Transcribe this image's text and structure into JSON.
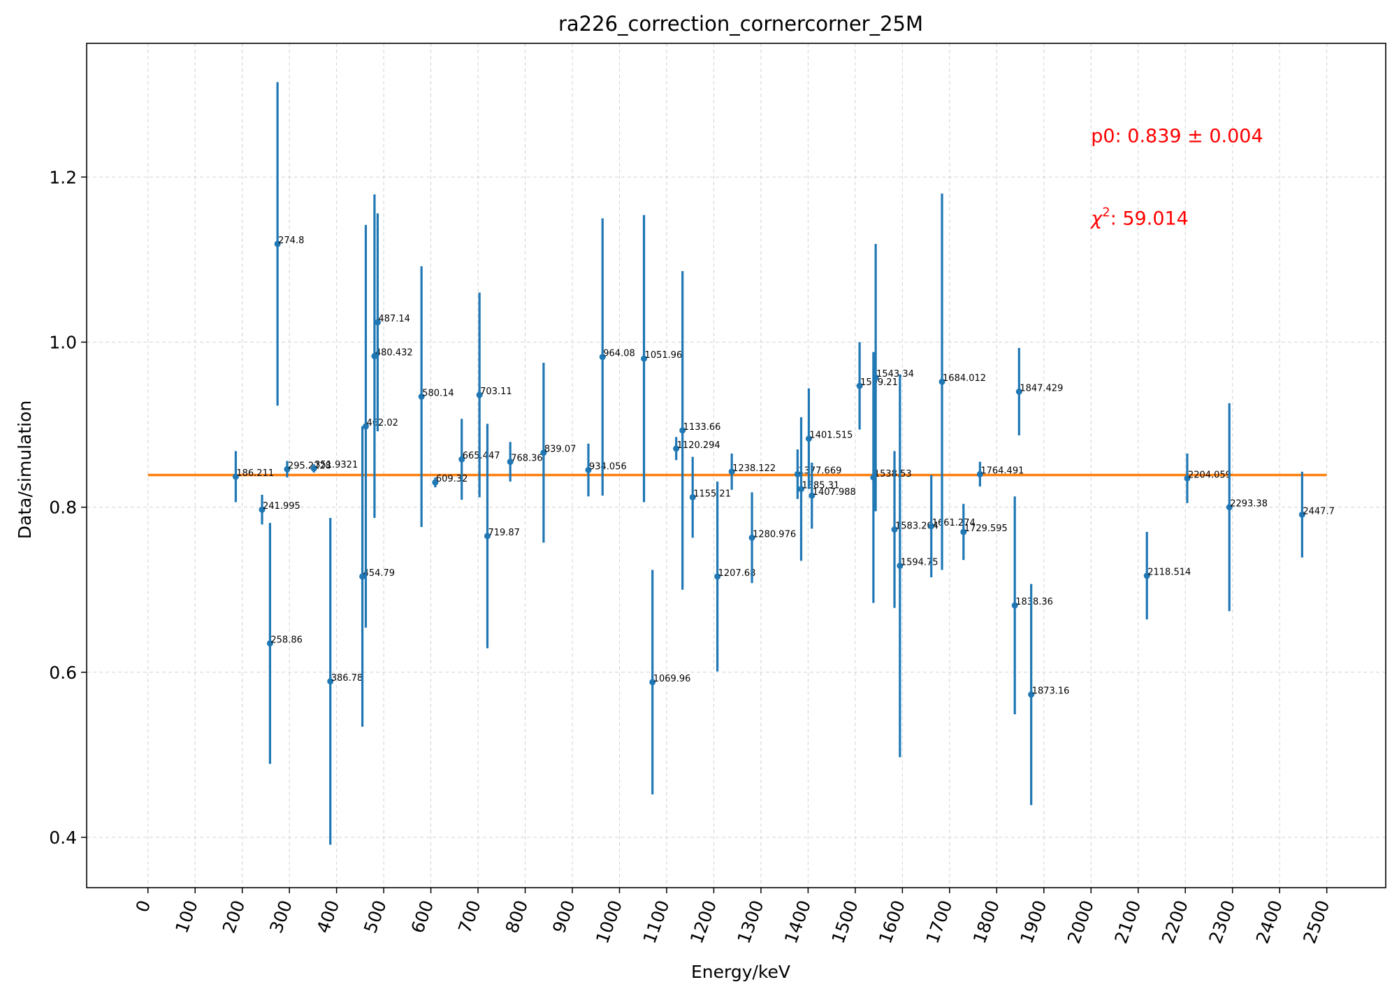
{
  "chart_data": {
    "type": "scatter",
    "title": "ra226_correction_cornercorner_25M",
    "xlabel": "Energy/keV",
    "ylabel": "Data/simulation",
    "xlim": [
      -130,
      2625
    ],
    "ylim": [
      0.339,
      1.362
    ],
    "x_ticks": [
      0,
      100,
      200,
      300,
      400,
      500,
      600,
      700,
      800,
      900,
      1000,
      1100,
      1200,
      1300,
      1400,
      1500,
      1600,
      1700,
      1800,
      1900,
      2000,
      2100,
      2200,
      2300,
      2400,
      2500
    ],
    "y_ticks": [
      0.4,
      0.6,
      0.8,
      1.0,
      1.2
    ],
    "y_tick_labels": [
      "0.4",
      "0.6",
      "0.8",
      "1.0",
      "1.2"
    ],
    "grid": true,
    "series": [
      {
        "type": "errorbar",
        "color": "#1f77b4",
        "points": [
          {
            "label": "186.211",
            "x": 186.211,
            "y": 0.837,
            "err": 0.031
          },
          {
            "label": "241.995",
            "x": 241.995,
            "y": 0.797,
            "err": 0.018
          },
          {
            "label": "258.86",
            "x": 258.86,
            "y": 0.635,
            "err": 0.146
          },
          {
            "label": "274.8",
            "x": 274.8,
            "y": 1.119,
            "err": 0.196
          },
          {
            "label": "295.2228",
            "x": 295.2228,
            "y": 0.846,
            "err": 0.01
          },
          {
            "label": "351.9321",
            "x": 351.9321,
            "y": 0.847,
            "err": 0.005
          },
          {
            "label": "386.78",
            "x": 386.78,
            "y": 0.589,
            "err": 0.198
          },
          {
            "label": "454.79",
            "x": 454.79,
            "y": 0.716,
            "err": 0.182
          },
          {
            "label": "462.02",
            "x": 462.02,
            "y": 0.898,
            "err": 0.244
          },
          {
            "label": "480.432",
            "x": 480.432,
            "y": 0.983,
            "err": 0.196
          },
          {
            "label": "487.14",
            "x": 487.14,
            "y": 1.024,
            "err": 0.132
          },
          {
            "label": "580.14",
            "x": 580.14,
            "y": 0.934,
            "err": 0.158
          },
          {
            "label": "609.32",
            "x": 609.32,
            "y": 0.83,
            "err": 0.006
          },
          {
            "label": "665.447",
            "x": 665.447,
            "y": 0.858,
            "err": 0.049
          },
          {
            "label": "703.11",
            "x": 703.11,
            "y": 0.936,
            "err": 0.124
          },
          {
            "label": "719.87",
            "x": 719.87,
            "y": 0.765,
            "err": 0.136
          },
          {
            "label": "768.36",
            "x": 768.36,
            "y": 0.855,
            "err": 0.024
          },
          {
            "label": "839.07",
            "x": 839.07,
            "y": 0.866,
            "err": 0.109
          },
          {
            "label": "934.056",
            "x": 934.056,
            "y": 0.845,
            "err": 0.032
          },
          {
            "label": "964.08",
            "x": 964.08,
            "y": 0.982,
            "err": 0.168
          },
          {
            "label": "1051.96",
            "x": 1051.96,
            "y": 0.98,
            "err": 0.174
          },
          {
            "label": "1069.96",
            "x": 1069.96,
            "y": 0.588,
            "err": 0.136
          },
          {
            "label": "1120.294",
            "x": 1120.294,
            "y": 0.871,
            "err": 0.014
          },
          {
            "label": "1133.66",
            "x": 1133.66,
            "y": 0.893,
            "err": 0.193
          },
          {
            "label": "1155.21",
            "x": 1155.21,
            "y": 0.812,
            "err": 0.049
          },
          {
            "label": "1207.68",
            "x": 1207.68,
            "y": 0.716,
            "err": 0.115
          },
          {
            "label": "1238.122",
            "x": 1238.122,
            "y": 0.843,
            "err": 0.022
          },
          {
            "label": "1280.976",
            "x": 1280.976,
            "y": 0.763,
            "err": 0.055
          },
          {
            "label": "1377.669",
            "x": 1377.669,
            "y": 0.84,
            "err": 0.03
          },
          {
            "label": "1385.31",
            "x": 1385.31,
            "y": 0.822,
            "err": 0.087
          },
          {
            "label": "1401.515",
            "x": 1401.515,
            "y": 0.883,
            "err": 0.061
          },
          {
            "label": "1407.988",
            "x": 1407.988,
            "y": 0.814,
            "err": 0.04
          },
          {
            "label": "1509.21",
            "x": 1509.21,
            "y": 0.947,
            "err": 0.053
          },
          {
            "label": "1538.53",
            "x": 1538.53,
            "y": 0.836,
            "err": 0.152
          },
          {
            "label": "1543.34",
            "x": 1543.34,
            "y": 0.957,
            "err": 0.162
          },
          {
            "label": "1583.204",
            "x": 1583.204,
            "y": 0.773,
            "err": 0.095
          },
          {
            "label": "1594.75",
            "x": 1594.75,
            "y": 0.729,
            "err": 0.232
          },
          {
            "label": "1661.274",
            "x": 1661.274,
            "y": 0.777,
            "err": 0.062
          },
          {
            "label": "1684.012",
            "x": 1684.012,
            "y": 0.952,
            "err": 0.228
          },
          {
            "label": "1729.595",
            "x": 1729.595,
            "y": 0.77,
            "err": 0.034
          },
          {
            "label": "1764.491",
            "x": 1764.491,
            "y": 0.84,
            "err": 0.015
          },
          {
            "label": "1838.36",
            "x": 1838.36,
            "y": 0.681,
            "err": 0.132
          },
          {
            "label": "1847.429",
            "x": 1847.429,
            "y": 0.94,
            "err": 0.053
          },
          {
            "label": "1873.16",
            "x": 1873.16,
            "y": 0.573,
            "err": 0.134
          },
          {
            "label": "2118.514",
            "x": 2118.514,
            "y": 0.717,
            "err": 0.053
          },
          {
            "label": "2204.059",
            "x": 2204.059,
            "y": 0.835,
            "err": 0.03
          },
          {
            "label": "2293.38",
            "x": 2293.38,
            "y": 0.8,
            "err": 0.126
          },
          {
            "label": "2447.7",
            "x": 2447.7,
            "y": 0.791,
            "err": 0.052
          }
        ]
      },
      {
        "type": "line",
        "color": "#ff7f0e",
        "x": [
          0,
          2500
        ],
        "y": [
          0.839,
          0.839
        ]
      }
    ],
    "annotations": [
      {
        "text": "p0: 0.839 ± 0.004",
        "x": 2000,
        "y": 1.25,
        "color": "#ff0000"
      },
      {
        "symbol": "χ",
        "superscript": "2",
        "text": ": 59.014",
        "x": 2000,
        "y": 1.15,
        "color": "#ff0000"
      }
    ]
  }
}
